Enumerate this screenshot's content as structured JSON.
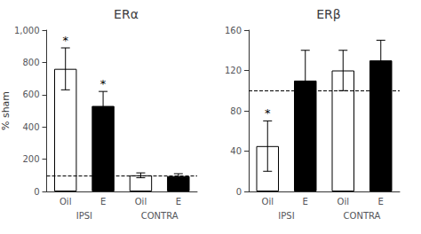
{
  "chart_data": [
    {
      "type": "bar",
      "title": "ERα",
      "ylabel": "% sham",
      "categories": [
        "Oil",
        "E",
        "Oil",
        "E"
      ],
      "groups": [
        "IPSI",
        "IPSI",
        "CONTRA",
        "CONTRA"
      ],
      "values": [
        760,
        530,
        100,
        95
      ],
      "errors": [
        130,
        90,
        15,
        15
      ],
      "annotations": [
        "*",
        "*",
        null,
        null
      ],
      "colors": [
        "white",
        "black",
        "white",
        "black"
      ],
      "reference_line": {
        "value": 100,
        "line_style": "dashed"
      },
      "ylim": [
        0,
        1000
      ],
      "yticks": [
        0,
        200,
        400,
        600,
        800,
        1000
      ],
      "grid": false
    },
    {
      "type": "bar",
      "title": "ERβ",
      "categories": [
        "Oil",
        "E",
        "Oil",
        "E"
      ],
      "groups": [
        "IPSI",
        "IPSI",
        "CONTRA",
        "CONTRA"
      ],
      "values": [
        45,
        110,
        120,
        130
      ],
      "errors": [
        25,
        30,
        20,
        20
      ],
      "annotations": [
        "*",
        null,
        null,
        null
      ],
      "colors": [
        "white",
        "black",
        "white",
        "black"
      ],
      "reference_line": {
        "value": 100,
        "line_style": "dashed"
      },
      "ylim": [
        0,
        160
      ],
      "yticks": [
        0,
        40,
        80,
        120,
        160
      ],
      "grid": false
    }
  ]
}
